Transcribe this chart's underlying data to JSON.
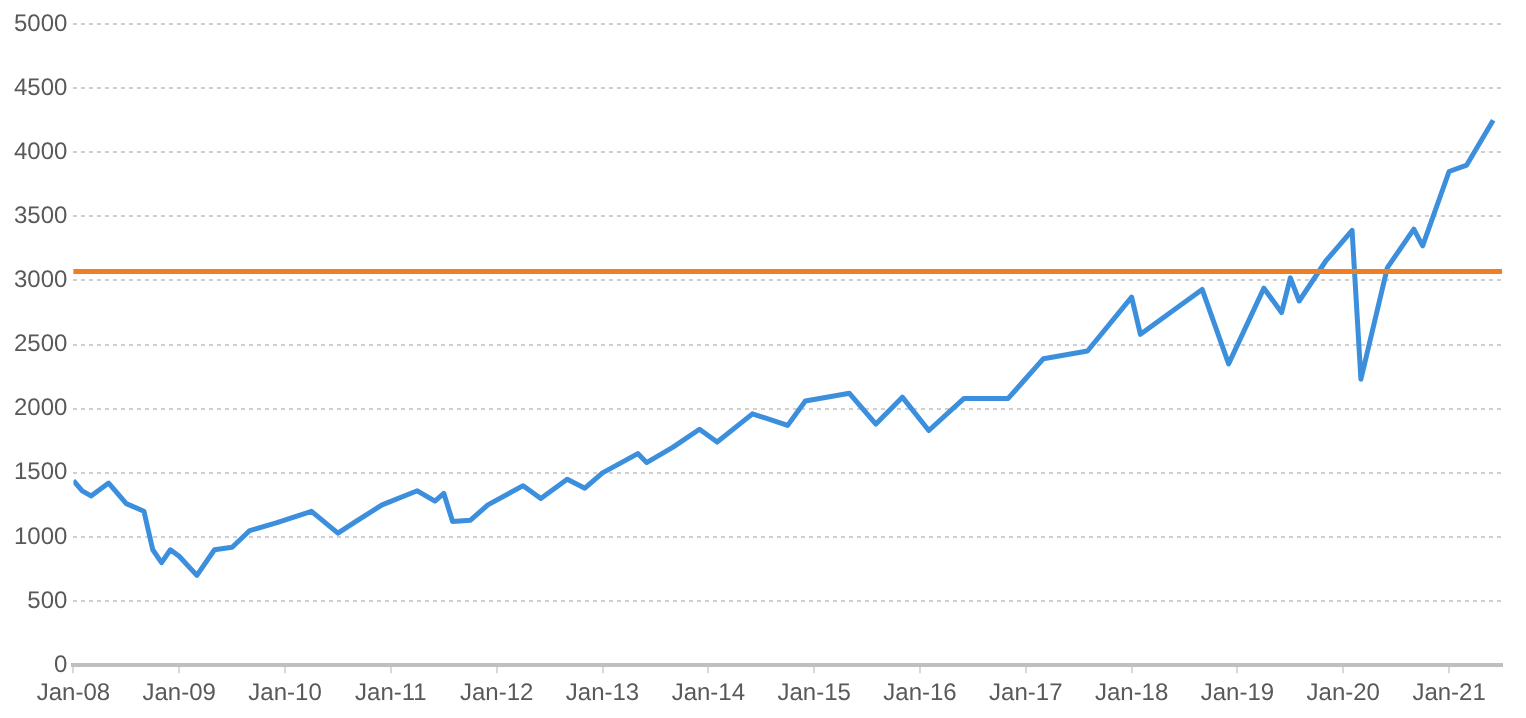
{
  "chart_data": {
    "type": "line",
    "x": [
      "2008-01",
      "2008-02",
      "2008-03",
      "2008-05",
      "2008-07",
      "2008-09",
      "2008-10",
      "2008-11",
      "2008-12",
      "2009-01",
      "2009-03",
      "2009-05",
      "2009-07",
      "2009-09",
      "2009-12",
      "2010-04",
      "2010-07",
      "2010-09",
      "2010-12",
      "2011-04",
      "2011-06",
      "2011-07",
      "2011-08",
      "2011-10",
      "2011-12",
      "2012-04",
      "2012-06",
      "2012-09",
      "2012-11",
      "2013-01",
      "2013-05",
      "2013-06",
      "2013-09",
      "2013-12",
      "2014-02",
      "2014-06",
      "2014-10",
      "2014-12",
      "2015-05",
      "2015-08",
      "2015-11",
      "2016-02",
      "2016-06",
      "2016-11",
      "2017-03",
      "2017-08",
      "2018-01",
      "2018-02",
      "2018-09",
      "2018-12",
      "2019-04",
      "2019-06",
      "2019-07",
      "2019-08",
      "2019-11",
      "2020-02",
      "2020-03",
      "2020-06",
      "2020-09",
      "2020-10",
      "2021-01",
      "2021-03",
      "2021-06"
    ],
    "series": [
      {
        "color": "#3c8fdc",
        "values": [
          1440,
          1360,
          1320,
          1420,
          1260,
          1200,
          900,
          800,
          900,
          850,
          700,
          900,
          920,
          1050,
          1110,
          1200,
          1030,
          1120,
          1250,
          1360,
          1280,
          1340,
          1120,
          1130,
          1250,
          1400,
          1300,
          1450,
          1380,
          1500,
          1650,
          1580,
          1700,
          1840,
          1740,
          1960,
          1870,
          2060,
          2120,
          1880,
          2090,
          1830,
          2080,
          2080,
          2390,
          2450,
          2870,
          2580,
          2930,
          2350,
          2940,
          2750,
          3020,
          2840,
          3150,
          3390,
          2230,
          3100,
          3400,
          3270,
          3850,
          3900,
          4250
        ]
      }
    ],
    "xlim": [
      "2008-01",
      "2021-07"
    ],
    "xticks": [
      {
        "value": "2008-01",
        "label": "Jan-08"
      },
      {
        "value": "2009-01",
        "label": "Jan-09"
      },
      {
        "value": "2010-01",
        "label": "Jan-10"
      },
      {
        "value": "2011-01",
        "label": "Jan-11"
      },
      {
        "value": "2012-01",
        "label": "Jan-12"
      },
      {
        "value": "2013-01",
        "label": "Jan-13"
      },
      {
        "value": "2014-01",
        "label": "Jan-14"
      },
      {
        "value": "2015-01",
        "label": "Jan-15"
      },
      {
        "value": "2016-01",
        "label": "Jan-16"
      },
      {
        "value": "2017-01",
        "label": "Jan-17"
      },
      {
        "value": "2018-01",
        "label": "Jan-18"
      },
      {
        "value": "2019-01",
        "label": "Jan-19"
      },
      {
        "value": "2020-01",
        "label": "Jan-20"
      },
      {
        "value": "2021-01",
        "label": "Jan-21"
      }
    ],
    "ylim": [
      0,
      5000
    ],
    "yticks": [
      0,
      500,
      1000,
      1500,
      2000,
      2500,
      3000,
      3500,
      4000,
      4500,
      5000
    ],
    "ref_lines": [
      {
        "axis": "y",
        "value": 3070,
        "color": "#f07f22"
      }
    ],
    "grid": "y",
    "legend": false,
    "marker": "none",
    "line_style": "solid"
  }
}
